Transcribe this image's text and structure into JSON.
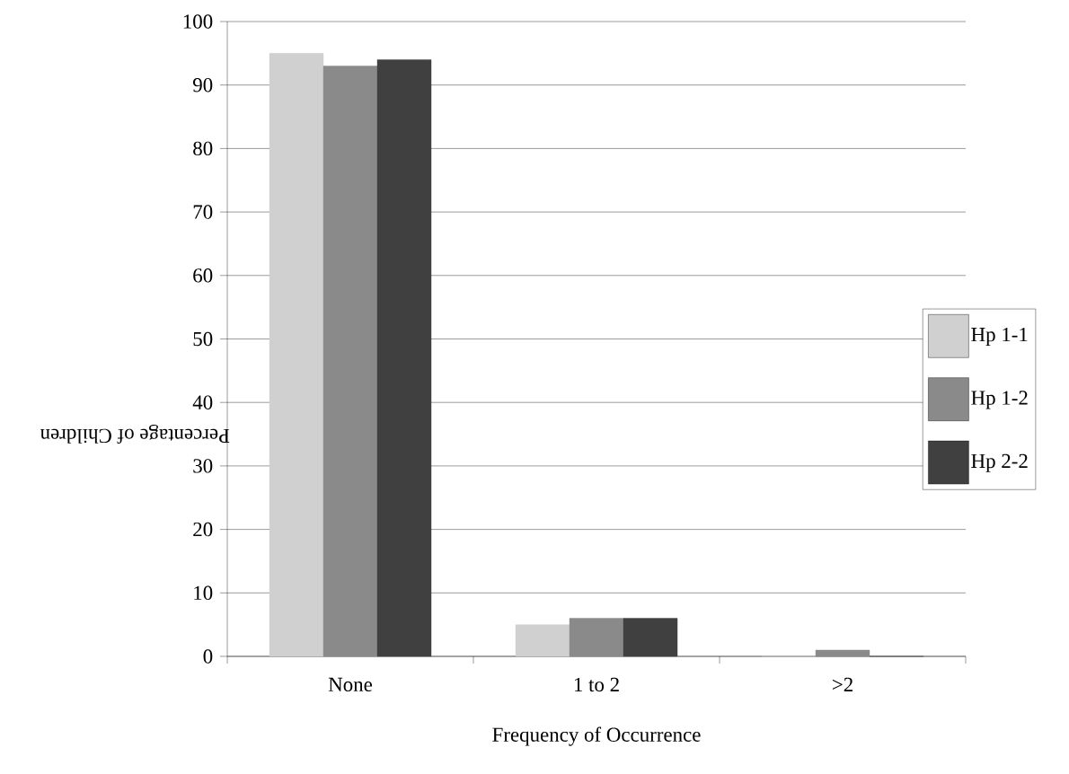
{
  "chart_data": {
    "type": "bar",
    "xlabel": "Frequency of Occurrence",
    "ylabel": "Percentage of Children",
    "categories": [
      "None",
      "1 to 2",
      ">2"
    ],
    "series": [
      {
        "name": "Hp 1-1",
        "color": "#d0d0d0",
        "values": [
          95,
          5,
          0
        ]
      },
      {
        "name": "Hp 1-2",
        "color": "#8a8a8a",
        "values": [
          93,
          6,
          1
        ]
      },
      {
        "name": "Hp 2-2",
        "color": "#404040",
        "values": [
          94,
          6,
          0
        ]
      }
    ],
    "ylim": [
      0,
      100
    ],
    "yticks": [
      0,
      10,
      20,
      30,
      40,
      50,
      60,
      70,
      80,
      90,
      100
    ],
    "grid": "y",
    "legend": "right"
  }
}
